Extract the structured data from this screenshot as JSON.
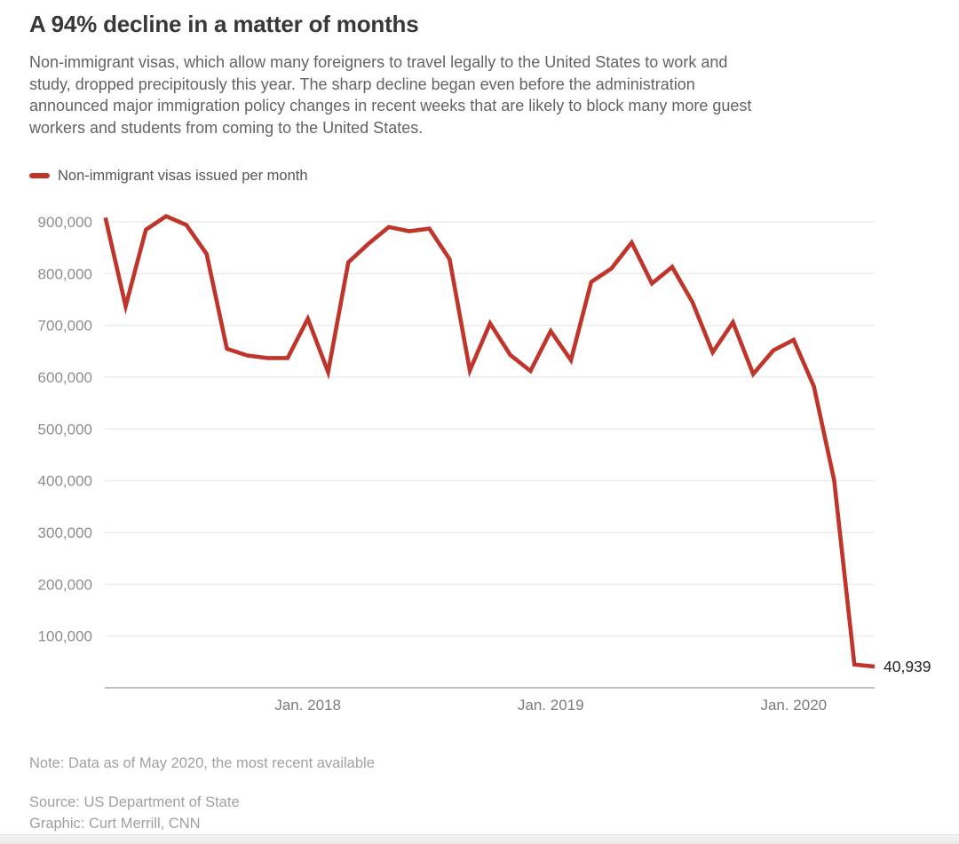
{
  "header": {
    "title": "A 94% decline in a matter of months",
    "description_lines": [
      "Non-immigrant visas, which allow many foreigners to travel legally to the United States to work and",
      "study, dropped precipitously this year. The sharp decline began even before the administration",
      "announced major immigration policy changes in recent weeks that are likely to block many more guest",
      "workers and students from coming to the United States."
    ]
  },
  "legend": {
    "label": "Non-immigrant visas issued per month",
    "swatch_color": "#c0352b"
  },
  "chart_data": {
    "type": "line",
    "title": "Non-immigrant visas issued per month",
    "xlabel": "",
    "ylabel": "",
    "grid": true,
    "legend_position": "top-left",
    "ylim": [
      0,
      945000
    ],
    "x": [
      "Mar 2017",
      "Apr 2017",
      "May 2017",
      "Jun 2017",
      "Jul 2017",
      "Aug 2017",
      "Sep 2017",
      "Oct 2017",
      "Nov 2017",
      "Dec 2017",
      "Jan 2018",
      "Feb 2018",
      "Mar 2018",
      "Apr 2018",
      "May 2018",
      "Jun 2018",
      "Jul 2018",
      "Aug 2018",
      "Sep 2018",
      "Oct 2018",
      "Nov 2018",
      "Dec 2018",
      "Jan 2019",
      "Feb 2019",
      "Mar 2019",
      "Apr 2019",
      "May 2019",
      "Jun 2019",
      "Jul 2019",
      "Aug 2019",
      "Sep 2019",
      "Oct 2019",
      "Nov 2019",
      "Dec 2019",
      "Jan 2020",
      "Feb 2020",
      "Mar 2020",
      "Apr 2020",
      "May 2020"
    ],
    "series": [
      {
        "name": "Non-immigrant visas issued per month",
        "color": "#c0352b",
        "values": [
          908000,
          737000,
          885000,
          911000,
          894000,
          838000,
          655000,
          642000,
          637000,
          637000,
          713000,
          610000,
          822000,
          858000,
          890000,
          882000,
          887000,
          828000,
          613000,
          704000,
          643000,
          612000,
          689000,
          633000,
          784000,
          810000,
          860000,
          781000,
          813000,
          745000,
          648000,
          706000,
          606000,
          652000,
          672000,
          582000,
          401000,
          45000,
          40939
        ]
      }
    ],
    "x_ticks": [
      {
        "index": 10,
        "label": "Jan. 2018"
      },
      {
        "index": 22,
        "label": "Jan. 2019"
      },
      {
        "index": 34,
        "label": "Jan. 2020"
      }
    ],
    "y_ticks": [
      {
        "value": 900000,
        "label": "900,000"
      },
      {
        "value": 800000,
        "label": "800,000"
      },
      {
        "value": 700000,
        "label": "700,000"
      },
      {
        "value": 600000,
        "label": "600,000"
      },
      {
        "value": 500000,
        "label": "500,000"
      },
      {
        "value": 400000,
        "label": "400,000"
      },
      {
        "value": 300000,
        "label": "300,000"
      },
      {
        "value": 200000,
        "label": "200,000"
      },
      {
        "value": 100000,
        "label": "100,000"
      }
    ],
    "end_label": {
      "value": 40939,
      "text": "40,939"
    }
  },
  "footer": {
    "note": "Note: Data as of May 2020, the most recent available",
    "source": "Source: US Department of State",
    "graphic": "Graphic: Curt Merrill, CNN"
  },
  "colors": {
    "line_red": "#c0352b",
    "gridline": "#e7e7e7",
    "axis_baseline": "#b9b9b9",
    "y_tick_text": "#8e8e8e",
    "x_tick_text": "#7b7b7b",
    "end_label_text": "#222222"
  }
}
